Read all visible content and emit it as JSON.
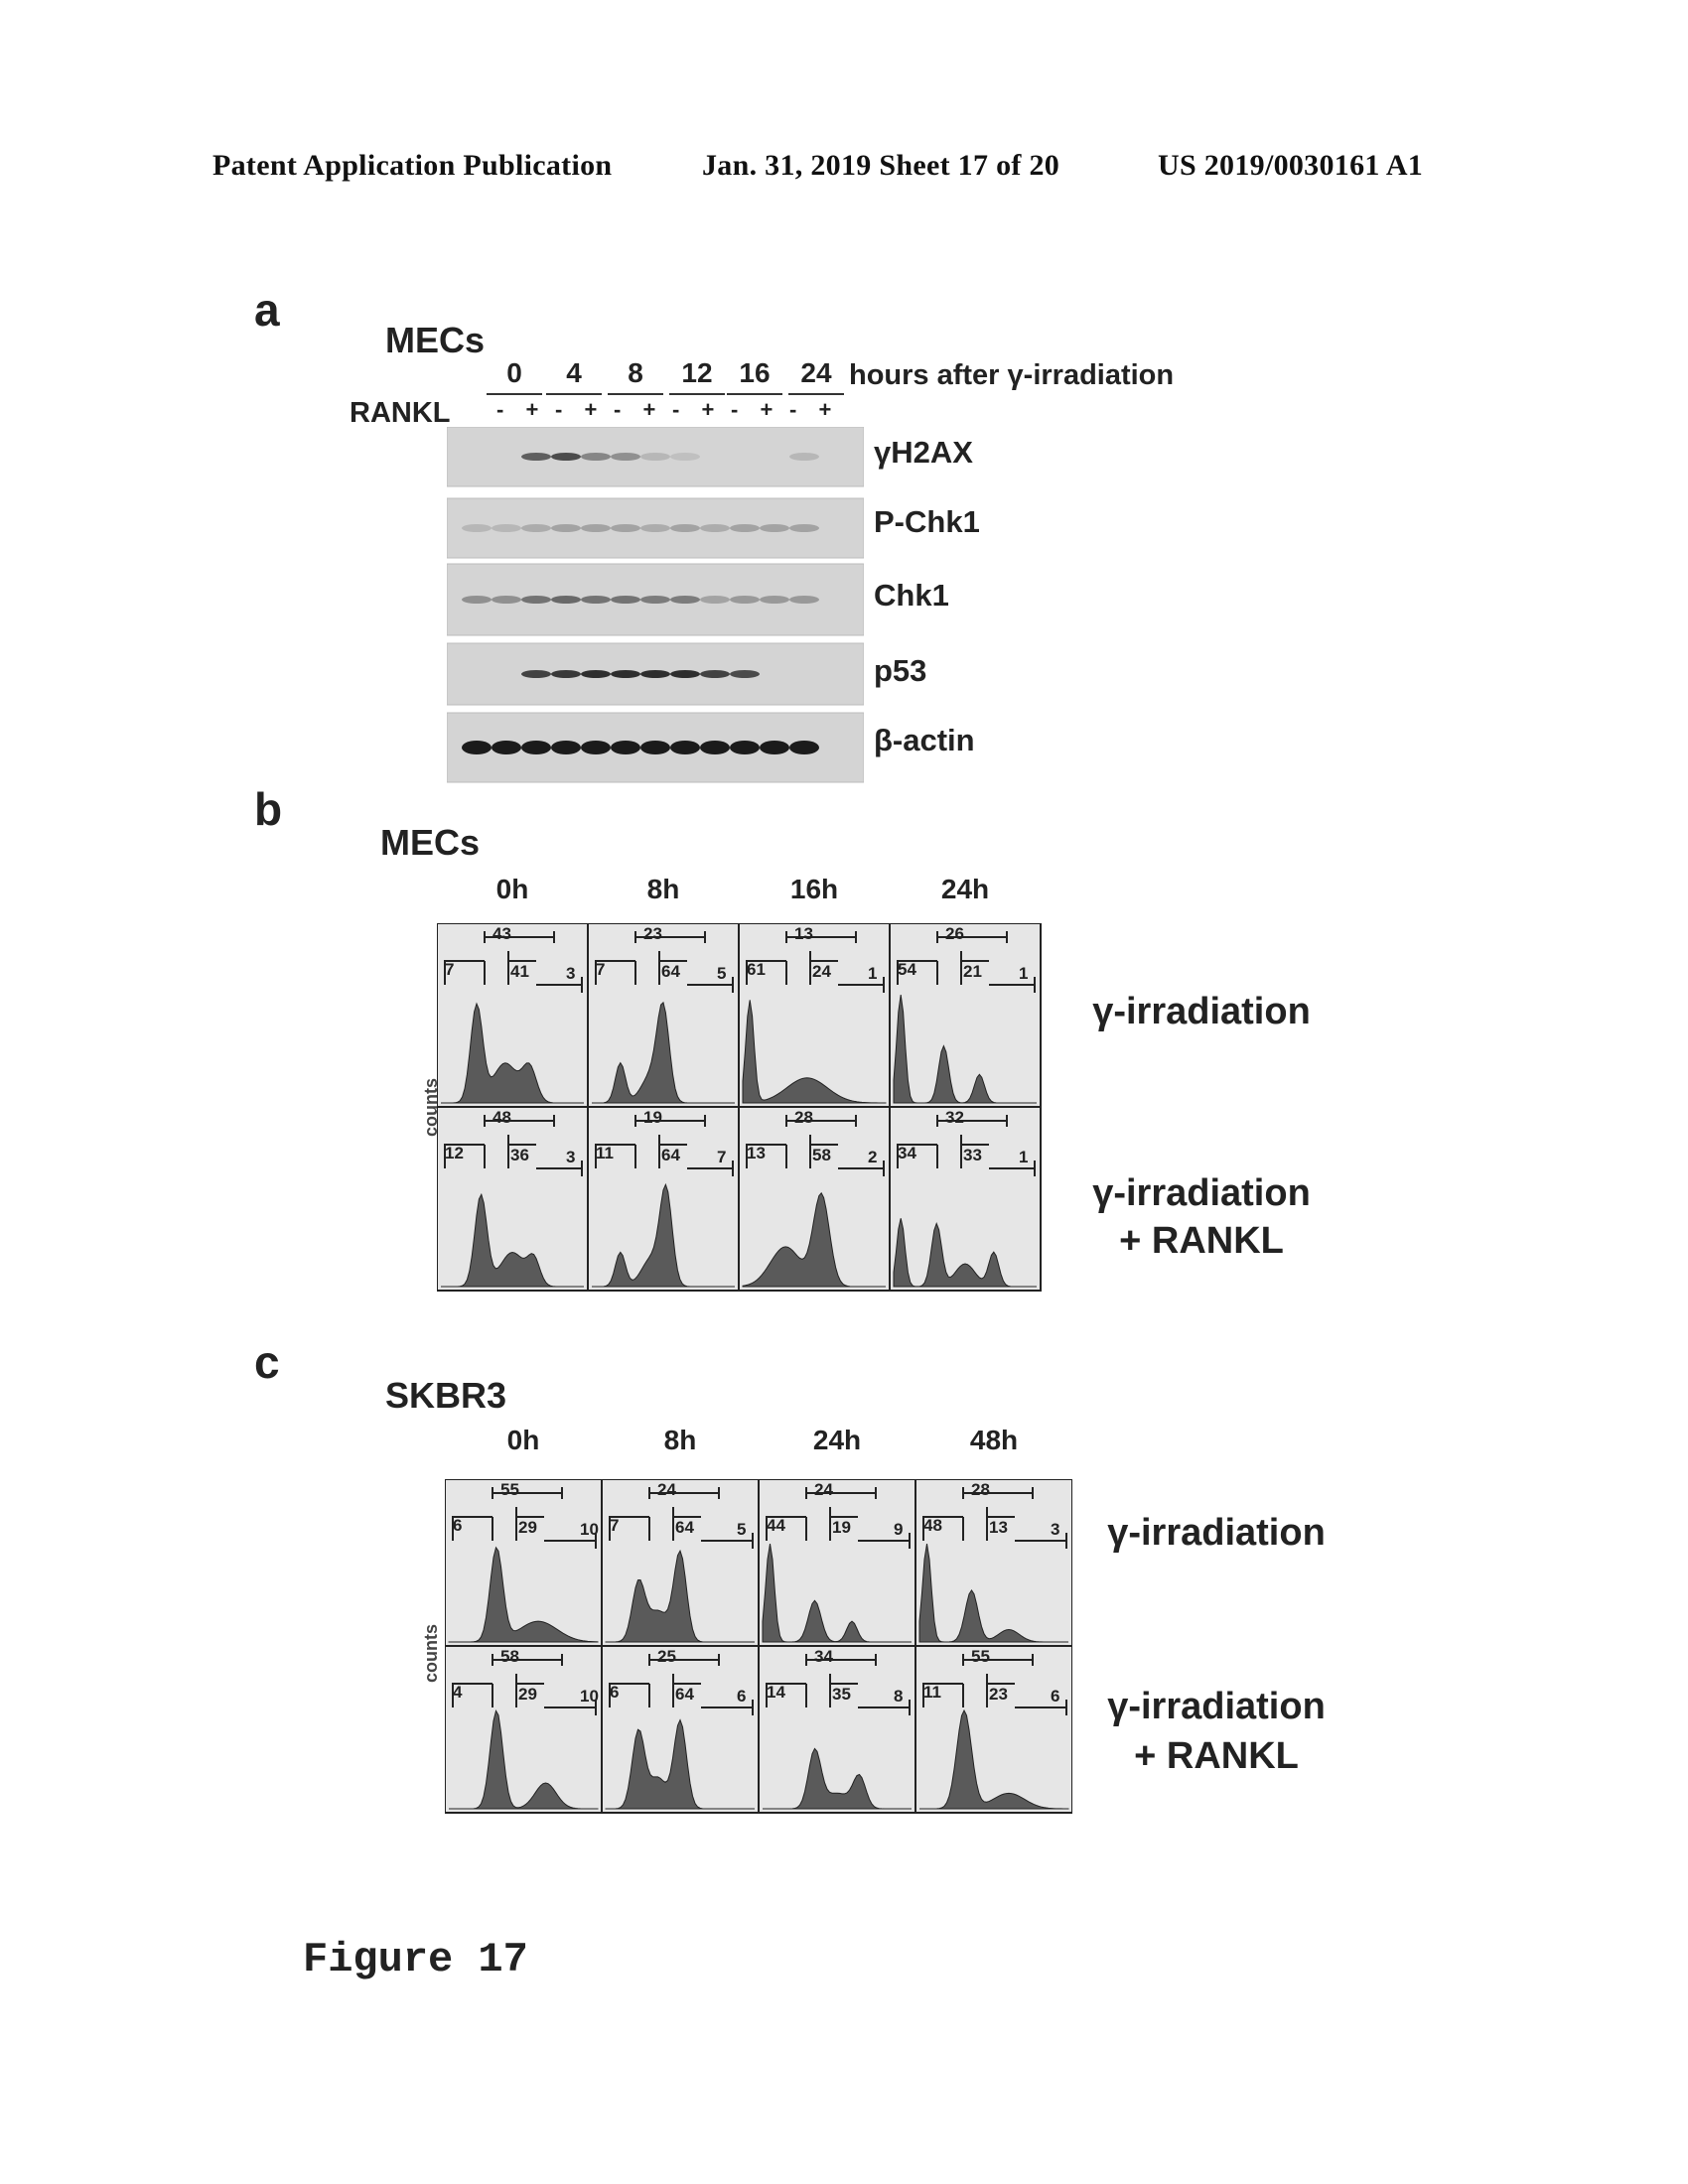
{
  "header": {
    "left": "Patent Application Publication",
    "middle": "Jan. 31, 2019  Sheet 17 of 20",
    "right": "US 2019/0030161 A1"
  },
  "panel_a": {
    "letter": "a",
    "title": "MECs",
    "time_points": [
      "0",
      "4",
      "8",
      "12",
      "16",
      "24"
    ],
    "time_caption": "hours after γ-irradiation",
    "rankl_label": "RANKL",
    "signs": [
      "-",
      "+",
      "-",
      "+",
      "-",
      "+",
      "-",
      "+",
      "-",
      "+",
      "-",
      "+"
    ],
    "bands": [
      "γH2AX",
      "P-Chk1",
      "Chk1",
      "p53",
      "β-actin"
    ]
  },
  "panel_b": {
    "letter": "b",
    "title": "MECs",
    "time_points": [
      "0h",
      "8h",
      "16h",
      "24h"
    ],
    "y_axis": "counts",
    "rows": [
      {
        "label": "γ-irradiation",
        "label2": "",
        "cells": [
          [
            "43",
            "7",
            "41",
            "3"
          ],
          [
            "23",
            "7",
            "64",
            "5"
          ],
          [
            "13",
            "61",
            "24",
            "1"
          ],
          [
            "26",
            "54",
            "21",
            "1"
          ]
        ]
      },
      {
        "label": "γ-irradiation",
        "label2": "+ RANKL",
        "cells": [
          [
            "48",
            "12",
            "36",
            "3"
          ],
          [
            "19",
            "11",
            "64",
            "7"
          ],
          [
            "28",
            "13",
            "58",
            "2"
          ],
          [
            "32",
            "34",
            "33",
            "1"
          ]
        ]
      }
    ]
  },
  "panel_c": {
    "letter": "c",
    "title": "SKBR3",
    "time_points": [
      "0h",
      "8h",
      "24h",
      "48h"
    ],
    "y_axis": "counts",
    "rows": [
      {
        "label": "γ-irradiation",
        "label2": "",
        "cells": [
          [
            "55",
            "6",
            "29",
            "10"
          ],
          [
            "24",
            "7",
            "64",
            "5"
          ],
          [
            "24",
            "44",
            "19",
            "9"
          ],
          [
            "28",
            "48",
            "13",
            "3"
          ]
        ]
      },
      {
        "label": "γ-irradiation",
        "label2": "+ RANKL",
        "cells": [
          [
            "58",
            "4",
            "29",
            "10"
          ],
          [
            "25",
            "6",
            "64",
            "6"
          ],
          [
            "34",
            "14",
            "35",
            "8"
          ],
          [
            "55",
            "11",
            "23",
            "6"
          ]
        ]
      }
    ]
  },
  "figure_caption": "Figure 17"
}
